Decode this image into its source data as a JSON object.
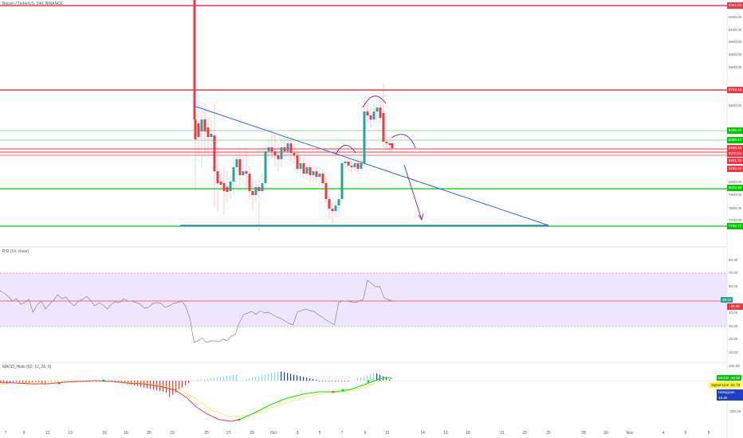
{
  "title": "Bitcoin / TetherUS, 240, BINANCE",
  "rsi": {
    "label": "RSI (14, close)",
    "current": "49.19",
    "level": "48.90"
  },
  "macd": {
    "label": "MACD_Histo (60, 12, 26, 9)",
    "values": [
      {
        "name": "MACD",
        "value": "-48.92",
        "color": "#00c800"
      },
      {
        "name": "Signal Line",
        "value": "-21.72",
        "color": "#ffff00"
      },
      {
        "name": "Histogram",
        "value": "18.30",
        "color": "#1f3fc8"
      }
    ]
  },
  "price_tags": [
    {
      "text": "9391.06",
      "color": "#f23645"
    },
    {
      "text": "8734.18",
      "color": "#f23645"
    },
    {
      "text": "8436.37",
      "color": "#00c800"
    },
    {
      "text": "8389.67",
      "color": "#00c800"
    },
    {
      "text": "8299.48",
      "color": "#f23645"
    },
    {
      "text": "8270.54",
      "color": "#f23645"
    },
    {
      "text": "8261.70",
      "color": "#f23645"
    },
    {
      "text": "8256.10",
      "color": "#f23645"
    },
    {
      "text": "8010.48",
      "color": "#00c800"
    },
    {
      "text": "7756.71",
      "color": "#00c800"
    }
  ],
  "price_axis": [
    "9200.00",
    "9100.00",
    "9000.00",
    "8900.00",
    "8800.00",
    "8600.00",
    "8000.00",
    "7900.00",
    "7800.00",
    "7700.00"
  ],
  "rsi_axis": [
    "80.00",
    "70.00",
    "60.00",
    "40.00",
    "30.00",
    "20.00",
    "10.00"
  ],
  "macd_axis": [
    "200.00",
    "-200.00",
    "-400.00"
  ],
  "dates": [
    "7",
    "9",
    "11",
    "13",
    "16",
    "18",
    "20",
    "23",
    "25",
    "27",
    "29",
    "Oct",
    "3",
    "5",
    "7",
    "9",
    "11",
    "14",
    "16",
    "18",
    "21",
    "23",
    "25",
    "28",
    "30",
    "Nov",
    "4",
    "6",
    "8"
  ]
}
